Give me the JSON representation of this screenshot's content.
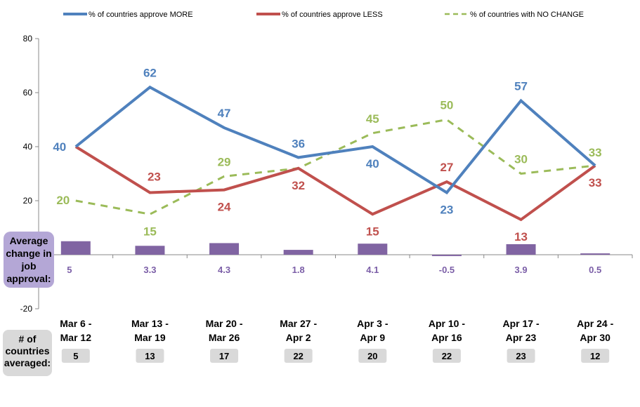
{
  "chart_data": {
    "type": "line",
    "categories": [
      [
        "Mar 6 -",
        "Mar 12"
      ],
      [
        "Mar 13 -",
        "Mar 19"
      ],
      [
        "Mar 20 -",
        "Mar 26"
      ],
      [
        "Mar 27 -",
        "Apr 2"
      ],
      [
        "Apr 3 -",
        "Apr 9"
      ],
      [
        "Apr 10 -",
        "Apr 16"
      ],
      [
        "Apr 17 -",
        "Apr 23"
      ],
      [
        "Apr 24 -",
        "Apr 30"
      ]
    ],
    "series": [
      {
        "name": "% of countries approve MORE",
        "color": "#4f81bd",
        "style": "solid",
        "values": [
          40,
          62,
          47,
          36,
          40,
          23,
          57,
          33
        ]
      },
      {
        "name": "% of countries approve LESS",
        "color": "#c0504d",
        "style": "solid",
        "values": [
          40,
          23,
          24,
          32,
          15,
          27,
          13,
          33
        ]
      },
      {
        "name": "% of countries with NO CHANGE",
        "color": "#9bbb59",
        "style": "dashed",
        "values": [
          20,
          15,
          29,
          32,
          45,
          50,
          30,
          33
        ]
      }
    ],
    "point_labels": {
      "% of countries approve MORE": [
        "40",
        "62",
        "47",
        "36",
        "40",
        "23",
        "57",
        ""
      ],
      "% of countries approve LESS": [
        "",
        "23",
        "24",
        "32",
        "15",
        "27",
        "13",
        "33"
      ],
      "% of countries with NO CHANGE": [
        "20",
        "15",
        "29",
        "",
        "45",
        "50",
        "30",
        "33"
      ]
    },
    "bars": {
      "name": "Average change in job approval:",
      "color": "#8064a2",
      "values": [
        5,
        3.3,
        4.3,
        1.8,
        4.1,
        -0.5,
        3.9,
        0.5
      ],
      "labels": [
        "5",
        "3.3",
        "4.3",
        "1.8",
        "4.1",
        "-0.5",
        "3.9",
        "0.5"
      ]
    },
    "countries_averaged": {
      "label": [
        "# of",
        "countries",
        "averaged:"
      ],
      "values": [
        "5",
        "13",
        "17",
        "22",
        "20",
        "22",
        "23",
        "12"
      ]
    },
    "avg_label": [
      "Average",
      "change in",
      "job",
      "approval:"
    ],
    "y_ticks": [
      "-20",
      "20",
      "40",
      "60",
      "80"
    ],
    "ylim": [
      -20,
      80
    ],
    "grid": false,
    "legend_position": "top"
  }
}
